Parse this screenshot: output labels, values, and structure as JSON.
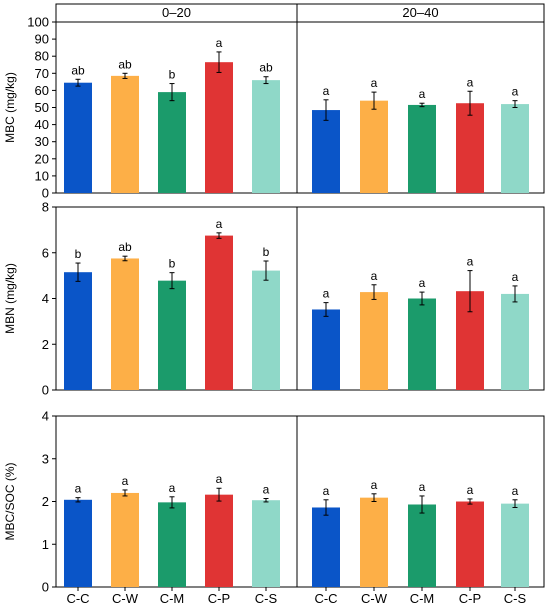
{
  "chart_data": {
    "type": "bar",
    "facets": [
      "0–20",
      "20–40"
    ],
    "categories": [
      "C-C",
      "C-W",
      "C-M",
      "C-P",
      "C-S"
    ],
    "colors": [
      "#0a55c8",
      "#fdaf47",
      "#1b9b6b",
      "#e03434",
      "#8fd8c8"
    ],
    "panels": [
      {
        "ylabel": "MBC (mg/kg)",
        "ylim": [
          0,
          100
        ],
        "yticks": [
          "0",
          "10",
          "20",
          "30",
          "40",
          "50",
          "60",
          "70",
          "80",
          "90",
          "100"
        ],
        "groups": [
          {
            "values": [
              64.5,
              68.5,
              59,
              76.5,
              66
            ],
            "errors": [
              2,
              1.5,
              5,
              6,
              2
            ],
            "letters": [
              "ab",
              "ab",
              "b",
              "a",
              "ab"
            ]
          },
          {
            "values": [
              48.5,
              54,
              51.5,
              52.5,
              52
            ],
            "errors": [
              6,
              5,
              1,
              7,
              2
            ],
            "letters": [
              "a",
              "a",
              "a",
              "a",
              "a"
            ]
          }
        ]
      },
      {
        "ylabel": "MBN (mg/kg)",
        "ylim": [
          0,
          8
        ],
        "yticks": [
          "0",
          "2",
          "4",
          "6",
          "8"
        ],
        "groups": [
          {
            "values": [
              5.15,
              5.75,
              4.78,
              6.75,
              5.22
            ],
            "errors": [
              0.4,
              0.1,
              0.35,
              0.12,
              0.42
            ],
            "letters": [
              "b",
              "ab",
              "b",
              "a",
              "b"
            ]
          },
          {
            "values": [
              3.52,
              4.28,
              4.0,
              4.32,
              4.2
            ],
            "errors": [
              0.3,
              0.32,
              0.28,
              0.9,
              0.35
            ],
            "letters": [
              "a",
              "a",
              "a",
              "a",
              "a"
            ]
          }
        ]
      },
      {
        "ylabel": "MBC/SOC (%)",
        "ylim": [
          0,
          4
        ],
        "yticks": [
          "0",
          "1",
          "2",
          "3",
          "4"
        ],
        "groups": [
          {
            "values": [
              2.04,
              2.2,
              1.98,
              2.16,
              2.03
            ],
            "errors": [
              0.05,
              0.07,
              0.13,
              0.15,
              0.04
            ],
            "letters": [
              "a",
              "a",
              "a",
              "a",
              "a"
            ]
          },
          {
            "values": [
              1.86,
              2.09,
              1.93,
              2.0,
              1.95
            ],
            "errors": [
              0.18,
              0.09,
              0.2,
              0.06,
              0.09
            ],
            "letters": [
              "a",
              "a",
              "a",
              "a",
              "a"
            ]
          }
        ]
      }
    ]
  }
}
